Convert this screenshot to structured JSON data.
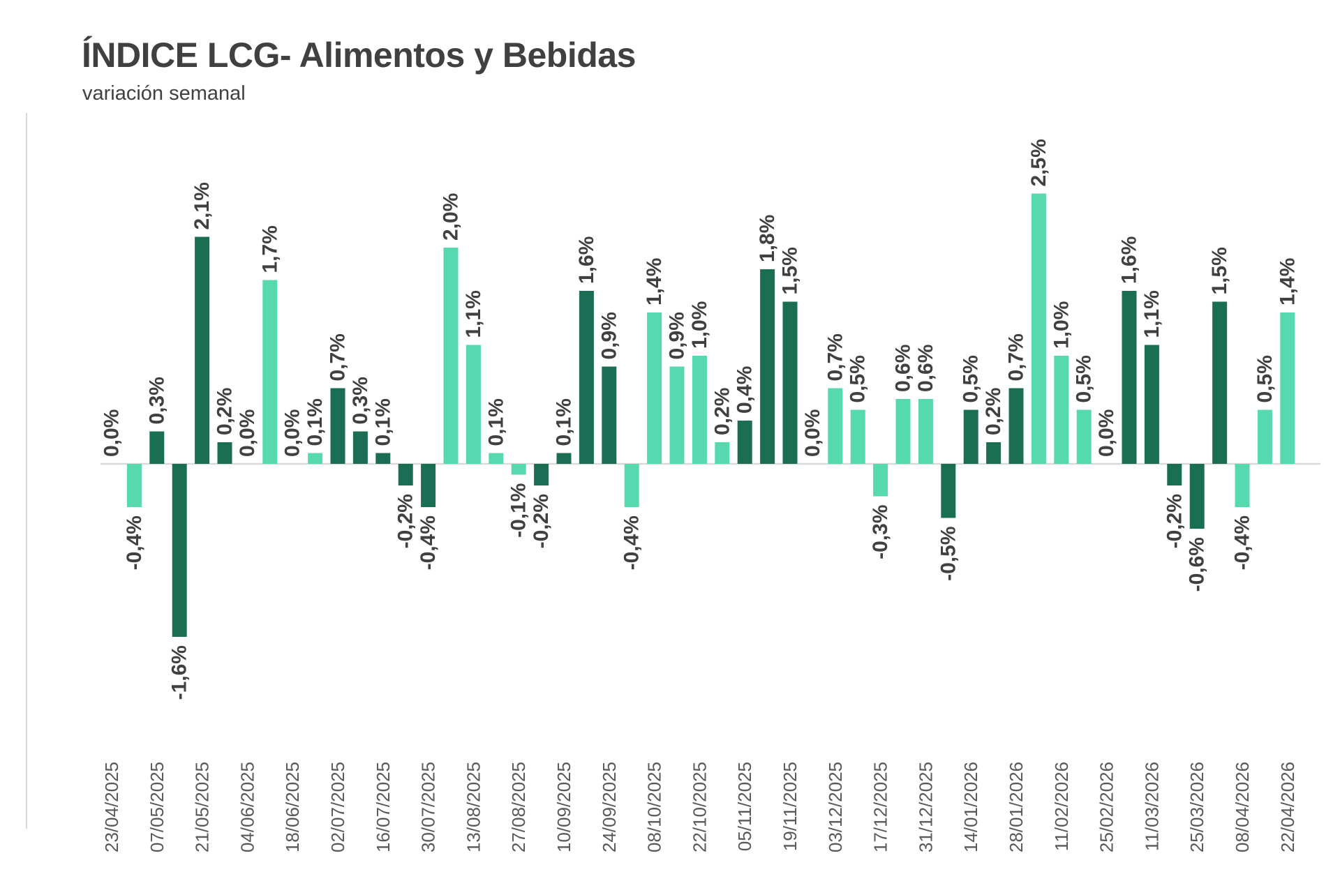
{
  "chart_data": {
    "type": "bar",
    "title": "ÍNDICE LCG- Alimentos y Bebidas",
    "subtitle": "variación semanal",
    "unit": "%",
    "ylim": [
      -2.0,
      2.8
    ],
    "grid": false,
    "legend": "none",
    "colors": {
      "dark": "#1a6e53",
      "light": "#57d9b0",
      "axis": "#d9d9d9",
      "label": "#404040",
      "tick": "#595959"
    },
    "tick_labels": [
      "23/04/2025",
      "07/05/2025",
      "21/05/2025",
      "04/06/2025",
      "18/06/2025",
      "02/07/2025",
      "16/07/2025",
      "30/07/2025",
      "13/08/2025",
      "27/08/2025",
      "10/09/2025",
      "24/09/2025",
      "08/10/2025",
      "22/10/2025",
      "05/11/2025",
      "19/11/2025",
      "03/12/2025",
      "17/12/2025",
      "31/12/2025",
      "14/01/2026",
      "28/01/2026",
      "11/02/2026",
      "25/02/2026",
      "11/03/2026",
      "25/03/2026",
      "08/04/2026",
      "22/04/2026"
    ],
    "values": [
      0.0,
      -0.4,
      0.3,
      -1.6,
      2.1,
      0.2,
      0.0,
      1.7,
      0.0,
      0.1,
      0.7,
      0.3,
      0.1,
      -0.2,
      -0.4,
      2.0,
      1.1,
      0.1,
      -0.1,
      -0.2,
      0.1,
      1.6,
      0.9,
      -0.4,
      1.4,
      0.9,
      1.0,
      0.2,
      0.4,
      1.8,
      1.5,
      0.0,
      0.7,
      0.5,
      -0.3,
      0.6,
      0.6,
      -0.5,
      0.5,
      0.2,
      0.7,
      2.5,
      1.0,
      0.5,
      0.0,
      1.6,
      1.1,
      -0.2,
      -0.6,
      1.5,
      -0.4,
      0.5,
      1.4
    ],
    "data_labels": [
      "0,0%",
      "-0,4%",
      "0,3%",
      "-1,6%",
      "2,1%",
      "0,2%",
      "0,0%",
      "1,7%",
      "0,0%",
      "0,1%",
      "0,7%",
      "0,3%",
      "0,1%",
      "-0,2%",
      "-0,4%",
      "2,0%",
      "1,1%",
      "0,1%",
      "-0,1%",
      "-0,2%",
      "0,1%",
      "1,6%",
      "0,9%",
      "-0,4%",
      "1,4%",
      "0,9%",
      "1,0%",
      "0,2%",
      "0,4%",
      "1,8%",
      "1,5%",
      "0,0%",
      "0,7%",
      "0,5%",
      "-0,3%",
      "0,6%",
      "0,6%",
      "-0,5%",
      "0,5%",
      "0,2%",
      "0,7%",
      "2,5%",
      "1,0%",
      "0,5%",
      "0,0%",
      "1,6%",
      "1,1%",
      "-0,2%",
      "-0,6%",
      "1,5%",
      "-0,4%",
      "0,5%",
      "1,4%"
    ],
    "bar_colors": [
      "dark",
      "light",
      "dark",
      "dark",
      "dark",
      "dark",
      "dark",
      "light",
      "light",
      "light",
      "dark",
      "dark",
      "dark",
      "dark",
      "dark",
      "light",
      "light",
      "light",
      "light",
      "dark",
      "dark",
      "dark",
      "dark",
      "light",
      "light",
      "light",
      "light",
      "light",
      "dark",
      "dark",
      "dark",
      "light",
      "light",
      "light",
      "light",
      "light",
      "light",
      "dark",
      "dark",
      "dark",
      "dark",
      "light",
      "light",
      "light",
      "light",
      "dark",
      "dark",
      "dark",
      "dark",
      "dark",
      "light",
      "light",
      "light"
    ]
  }
}
